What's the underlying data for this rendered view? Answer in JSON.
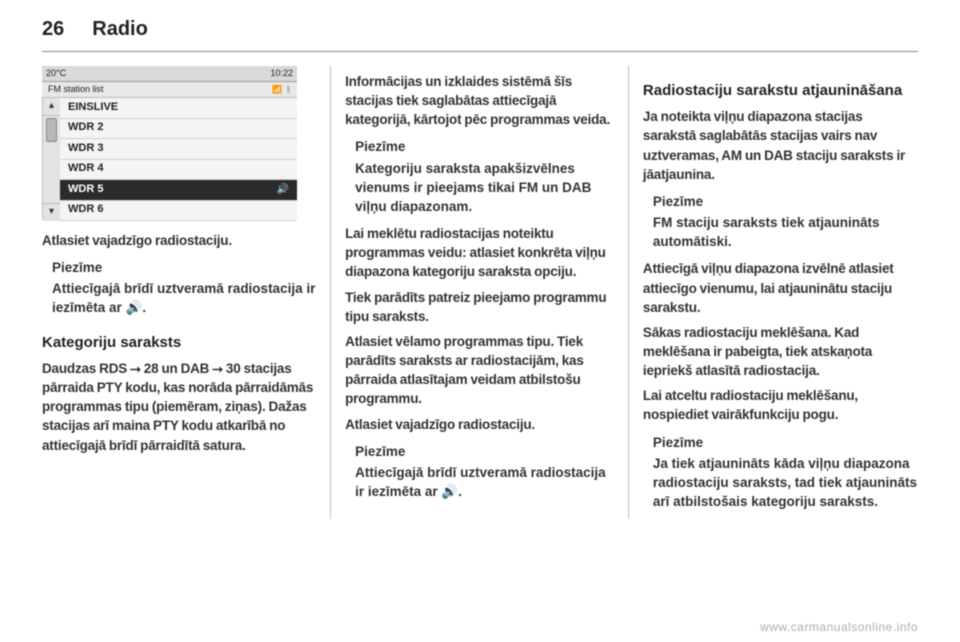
{
  "header": {
    "page_num": "26",
    "title": "Radio"
  },
  "device": {
    "topbar": {
      "temp": "20°C",
      "clock": "10:22"
    },
    "subbar": {
      "label": "FM station list",
      "icon_bt": "ᛒ"
    },
    "stations": [
      {
        "name": "EINSLIVE",
        "selected": false
      },
      {
        "name": "WDR 2",
        "selected": false
      },
      {
        "name": "WDR 3",
        "selected": false
      },
      {
        "name": "WDR 4",
        "selected": false
      },
      {
        "name": "WDR 5",
        "selected": true
      },
      {
        "name": "WDR 6",
        "selected": false
      }
    ],
    "speaker_icon": "🔊"
  },
  "col1": {
    "p1": "Atlasiet vajadzīgo radiostaciju.",
    "note1_title": "Piezīme",
    "note1_body": "Attiecīgajā brīdī uztveramā radiostacija ir iezīmēta ar 🔊.",
    "h_cat": "Kategoriju saraksts",
    "p2": "Daudzas RDS ⭢ 28 un DAB ⭢ 30 stacijas pārraida PTY kodu, kas norāda pārraidāmās programmas tipu (piemēram, ziņas). Dažas stacijas arī maina PTY kodu atkarībā no attiecīgajā brīdī pārraidītā satura."
  },
  "col2": {
    "p1": "Informācijas un izklaides sistēmā šīs stacijas tiek saglabātas attiecīgajā kategorijā, kārtojot pēc programmas veida.",
    "note1_title": "Piezīme",
    "note1_body": "Kategoriju saraksta apakšizvēlnes vienums ir pieejams tikai FM un DAB viļņu diapazonam.",
    "p2": "Lai meklētu radiostacijas noteiktu programmas veidu: atlasiet konkrēta viļņu diapazona kategoriju saraksta opciju.",
    "p3": "Tiek parādīts patreiz pieejamo programmu tipu saraksts.",
    "p4": "Atlasiet vēlamo programmas tipu. Tiek parādīts saraksts ar radiostacijām, kas pārraida atlasītajam veidam atbilstošu programmu.",
    "p5": "Atlasiet vajadzīgo radiostaciju.",
    "note2_title": "Piezīme",
    "note2_body": "Attiecīgajā brīdī uztveramā radiostacija ir iezīmēta ar 🔊."
  },
  "col3": {
    "h_update": "Radiostaciju sarakstu atjaunināšana",
    "p1": "Ja noteikta viļņu diapazona stacijas sarakstā saglabātās stacijas vairs nav uztveramas, AM un DAB staciju saraksts ir jāatjaunina.",
    "note1_title": "Piezīme",
    "note1_body": "FM staciju saraksts tiek atjaunināts automātiski.",
    "p2": "Attiecīgā viļņu diapazona izvēlnē atlasiet attiecīgo vienumu, lai atjauninātu staciju sarakstu.",
    "p3": "Sākas radiostaciju meklēšana. Kad meklēšana ir pabeigta, tiek atskaņota iepriekš atlasītā radiostacija.",
    "p4": "Lai atceltu radiostaciju meklēšanu, nospiediet vairākfunkciju pogu.",
    "note2_title": "Piezīme",
    "note2_body": "Ja tiek atjaunināts kāda viļņu diapazona radiostaciju saraksts, tad tiek atjaunināts arī atbilstošais kategoriju saraksts."
  },
  "footer": "www.carmanualsonline.info"
}
